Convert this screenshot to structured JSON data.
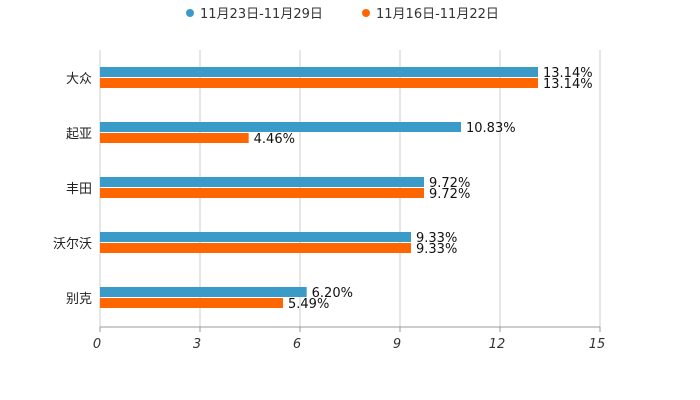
{
  "chart_data": {
    "type": "bar",
    "orientation": "horizontal",
    "categories": [
      "大众",
      "起亚",
      "丰田",
      "沃尔沃",
      "别克"
    ],
    "series": [
      {
        "name": "11月23日-11月29日",
        "color": "#3a9ac8",
        "values": [
          13.14,
          10.83,
          9.72,
          9.33,
          6.2
        ],
        "labels": [
          "13.14%",
          "10.83%",
          "9.72%",
          "9.33%",
          "6.20%"
        ]
      },
      {
        "name": "11月16日-11月22日",
        "color": "#ff6600",
        "values": [
          13.14,
          4.46,
          9.72,
          9.33,
          5.49
        ],
        "labels": [
          "13.14%",
          "4.46%",
          "9.72%",
          "9.33%",
          "5.49%"
        ]
      }
    ],
    "xlim": [
      0,
      15
    ],
    "xticks": [
      0,
      3,
      6,
      9,
      12,
      15
    ],
    "tick_labels": [
      "0",
      "3",
      "6",
      "9",
      "12",
      "15"
    ],
    "title": "",
    "xlabel": "",
    "ylabel": "",
    "legend_position": "top-center",
    "grid": true
  }
}
